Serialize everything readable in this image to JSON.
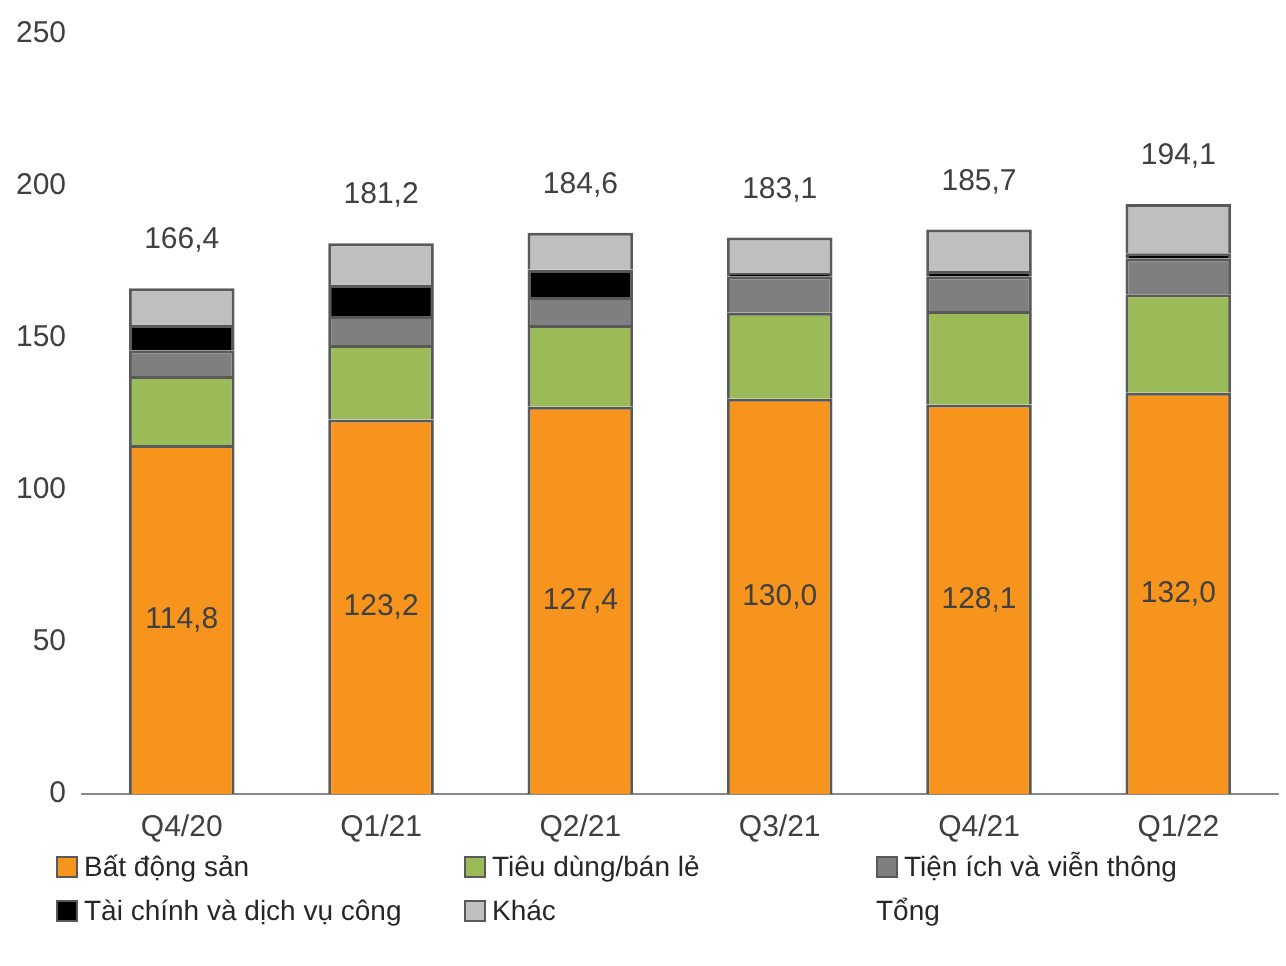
{
  "chart_data": {
    "type": "bar",
    "stacked": true,
    "categories": [
      "Q4/20",
      "Q1/21",
      "Q2/21",
      "Q3/21",
      "Q4/21",
      "Q1/22"
    ],
    "ylim": [
      0,
      250
    ],
    "yticks": [
      0,
      50,
      100,
      150,
      200,
      250
    ],
    "grid": false,
    "legend": "bottom",
    "series": [
      {
        "name": "Bất động sản",
        "color": "#f7941d",
        "values": [
          114.8,
          123.2,
          127.4,
          130.0,
          128.1,
          132.0
        ],
        "value_labels": [
          "114,8",
          "123,2",
          "127,4",
          "130,0",
          "128,1",
          "132,0"
        ]
      },
      {
        "name": "Tiêu dùng/bán lẻ",
        "color": "#9bbb59",
        "values": [
          22.7,
          24.5,
          26.9,
          28.3,
          30.8,
          32.4
        ]
      },
      {
        "name": "Tiện ích và viễn thông",
        "color": "#7f7f7f",
        "values": [
          8.5,
          9.5,
          9.2,
          12.0,
          11.4,
          11.8
        ]
      },
      {
        "name": "Tài chính và dịch vụ công",
        "color": "#000000",
        "values": [
          8.3,
          10.2,
          9.0,
          1.1,
          1.7,
          1.7
        ]
      },
      {
        "name": "Khác",
        "color": "#bfbfbf",
        "values": [
          12.1,
          13.8,
          12.1,
          11.7,
          13.7,
          16.2
        ]
      }
    ],
    "annotations": [
      "Tổng"
    ],
    "totals": [
      "166,4",
      "181,2",
      "184,6",
      "183,1",
      "185,7",
      "194,1"
    ]
  }
}
